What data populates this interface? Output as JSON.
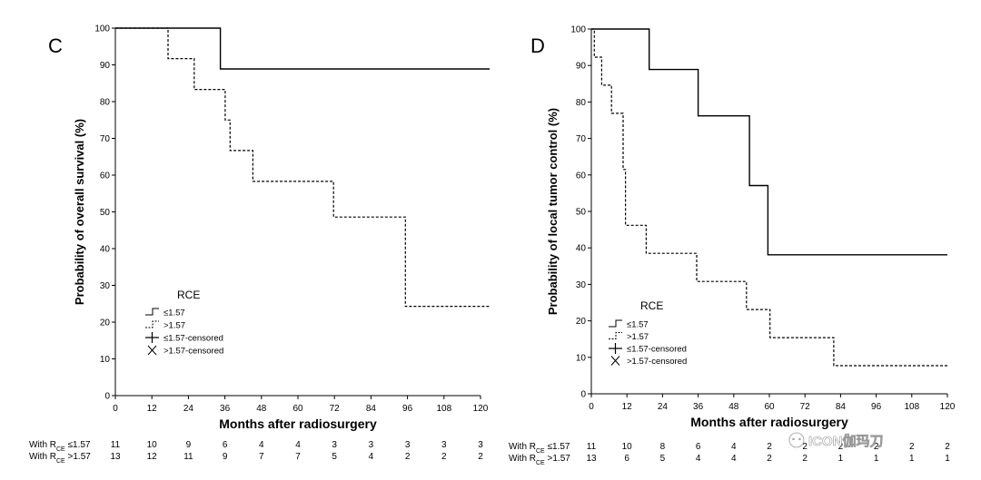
{
  "watermark": "ICON伽玛刀",
  "chart_data": [
    {
      "type": "line",
      "panel_label": "C",
      "xlabel": "Months after radiosurgery",
      "ylabel": "Probability of overall survival (%)",
      "xlim": [
        0,
        120
      ],
      "ylim": [
        0,
        100
      ],
      "xticks": [
        0,
        12,
        24,
        36,
        48,
        60,
        72,
        84,
        96,
        108,
        120
      ],
      "yticks": [
        0,
        10,
        20,
        30,
        40,
        50,
        60,
        70,
        80,
        90,
        100
      ],
      "grid": false,
      "legend": {
        "title": "RCE",
        "position": "bottom-left",
        "entries": [
          "≤1.57",
          ">1.57",
          "≤1.57-censored",
          ">1.57-censored"
        ]
      },
      "series": [
        {
          "name": "≤1.57",
          "style": "solid",
          "x": [
            0,
            34.5,
            34.5,
            123
          ],
          "y": [
            100,
            100,
            88.9,
            88.9
          ]
        },
        {
          "name": ">1.57",
          "style": "dashed",
          "x": [
            0,
            17.3,
            17.3,
            25.9,
            25.9,
            36.1,
            36.1,
            37.7,
            37.7,
            45.2,
            45.2,
            71.7,
            71.7,
            95.3,
            95.3,
            123
          ],
          "y": [
            100,
            100,
            91.7,
            91.7,
            83.3,
            83.3,
            75,
            75,
            66.7,
            66.7,
            58.3,
            58.3,
            48.6,
            48.6,
            24.3,
            24.3
          ]
        }
      ],
      "risk_table": {
        "rows": [
          {
            "label_prefix": "With R",
            "label_sub": "CE",
            "label_suffix": " ≤1.57",
            "values": [
              "11",
              "10",
              "9",
              "6",
              "4",
              "4",
              "3",
              "3",
              "3",
              "3",
              "3"
            ]
          },
          {
            "label_prefix": "With R",
            "label_sub": "CE",
            "label_suffix": " >1.57",
            "values": [
              "13",
              "12",
              "11",
              "9",
              "7",
              "7",
              "5",
              "4",
              "2",
              "2",
              "2"
            ]
          }
        ]
      }
    },
    {
      "type": "line",
      "panel_label": "D",
      "xlabel": "Months after radiosurgery",
      "ylabel": "Probability of local tumor control (%)",
      "xlim": [
        0,
        120
      ],
      "ylim": [
        0,
        100
      ],
      "xticks": [
        0,
        12,
        24,
        36,
        48,
        60,
        72,
        84,
        96,
        108,
        120
      ],
      "yticks": [
        0,
        10,
        20,
        30,
        40,
        50,
        60,
        70,
        80,
        90,
        100
      ],
      "grid": false,
      "legend": {
        "title": "RCE",
        "position": "bottom-left",
        "entries": [
          "≤1.57",
          ">1.57",
          "≤1.57-censored",
          ">1.57-censored"
        ]
      },
      "series": [
        {
          "name": "≤1.57",
          "style": "solid",
          "x": [
            0,
            19.5,
            19.5,
            36,
            36,
            53.3,
            53.3,
            59.5,
            59.5,
            120
          ],
          "y": [
            100,
            100,
            88.9,
            88.9,
            76.2,
            76.2,
            57.1,
            57.1,
            38.1,
            38.1
          ]
        },
        {
          "name": ">1.57",
          "style": "dashed",
          "x": [
            0,
            1,
            1,
            3.5,
            3.5,
            6.8,
            6.8,
            9.5,
            9.5,
            10.7,
            10.7,
            11.5,
            11.5,
            18.5,
            18.5,
            35.5,
            35.5,
            52.3,
            52.3,
            60.2,
            60.2,
            81.7,
            81.7,
            120
          ],
          "y": [
            100,
            100,
            92.3,
            92.3,
            84.6,
            84.6,
            76.9,
            76.9,
            76.9,
            76.9,
            61.5,
            61.5,
            46.2,
            46.2,
            38.5,
            38.5,
            30.8,
            30.8,
            23.1,
            23.1,
            15.4,
            15.4,
            7.7,
            7.7
          ]
        }
      ],
      "risk_table": {
        "rows": [
          {
            "label_prefix": "With R",
            "label_sub": "CE",
            "label_suffix": " ≤1.57",
            "values": [
              "11",
              "10",
              "8",
              "6",
              "4",
              "2",
              "2",
              "2",
              "2",
              "2",
              "2"
            ]
          },
          {
            "label_prefix": "With R",
            "label_sub": "CE",
            "label_suffix": " >1.57",
            "values": [
              "13",
              "6",
              "5",
              "4",
              "4",
              "2",
              "2",
              "1",
              "1",
              "1",
              "1"
            ]
          }
        ]
      }
    }
  ]
}
